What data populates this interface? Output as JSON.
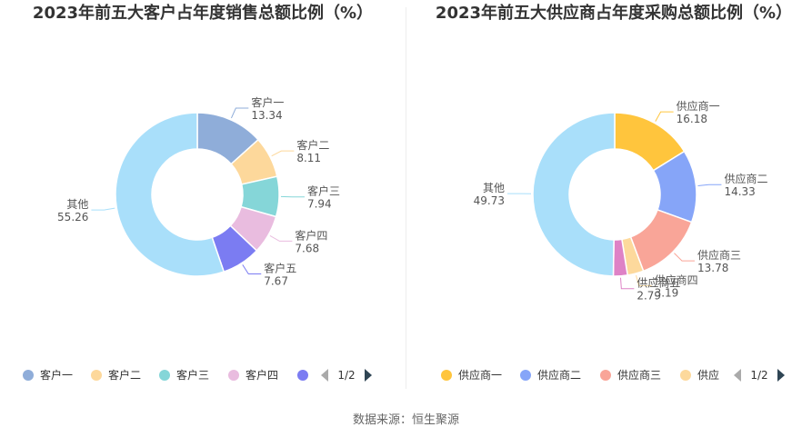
{
  "chart_data": [
    {
      "type": "pie",
      "title": "2023年前五大客户占年度销售总额比例（%）",
      "slices": [
        {
          "label": "客户一",
          "value": 13.34,
          "value_text": "13.34",
          "color": "#8fadd9"
        },
        {
          "label": "客户二",
          "value": 8.11,
          "value_text": "8.11",
          "color": "#fdd89b"
        },
        {
          "label": "客户三",
          "value": 7.94,
          "value_text": "7.94",
          "color": "#85d6d8"
        },
        {
          "label": "客户四",
          "value": 7.68,
          "value_text": "7.68",
          "color": "#e9bcdf"
        },
        {
          "label": "客户五",
          "value": 7.67,
          "value_text": "7.67",
          "color": "#7b7cf2"
        },
        {
          "label": "其他",
          "value": 55.26,
          "value_text": "55.26",
          "color": "#a9dffa"
        }
      ],
      "legend": {
        "items": [
          {
            "label": "客户一",
            "color": "#8fadd9"
          },
          {
            "label": "客户二",
            "color": "#fdd89b"
          },
          {
            "label": "客户三",
            "color": "#85d6d8"
          },
          {
            "label": "客户四",
            "color": "#e9bcdf"
          },
          {
            "label": "",
            "color": "#7b7cf2"
          }
        ],
        "page": "1/2",
        "position": "bottom"
      }
    },
    {
      "type": "pie",
      "title": "2023年前五大供应商占年度采购总额比例（%）",
      "slices": [
        {
          "label": "供应商一",
          "value": 16.18,
          "value_text": "16.18",
          "color": "#ffc53d"
        },
        {
          "label": "供应商二",
          "value": 14.33,
          "value_text": "14.33",
          "color": "#86a5f8"
        },
        {
          "label": "供应商三",
          "value": 13.78,
          "value_text": "13.78",
          "color": "#f9a598"
        },
        {
          "label": "供应商四",
          "value": 3.19,
          "value_text": "3.19",
          "color": "#fdd99c"
        },
        {
          "label": "供应商五",
          "value": 2.79,
          "value_text": "2.79",
          "color": "#de82c6"
        },
        {
          "label": "其他",
          "value": 49.73,
          "value_text": "49.73",
          "color": "#a9dffa"
        }
      ],
      "legend": {
        "items": [
          {
            "label": "供应商一",
            "color": "#ffc53d"
          },
          {
            "label": "供应商二",
            "color": "#86a5f8"
          },
          {
            "label": "供应商三",
            "color": "#f9a598"
          },
          {
            "label": "供应",
            "color": "#fdd99c"
          }
        ],
        "page": "1/2",
        "position": "bottom"
      }
    }
  ],
  "source": "数据来源：恒生聚源"
}
